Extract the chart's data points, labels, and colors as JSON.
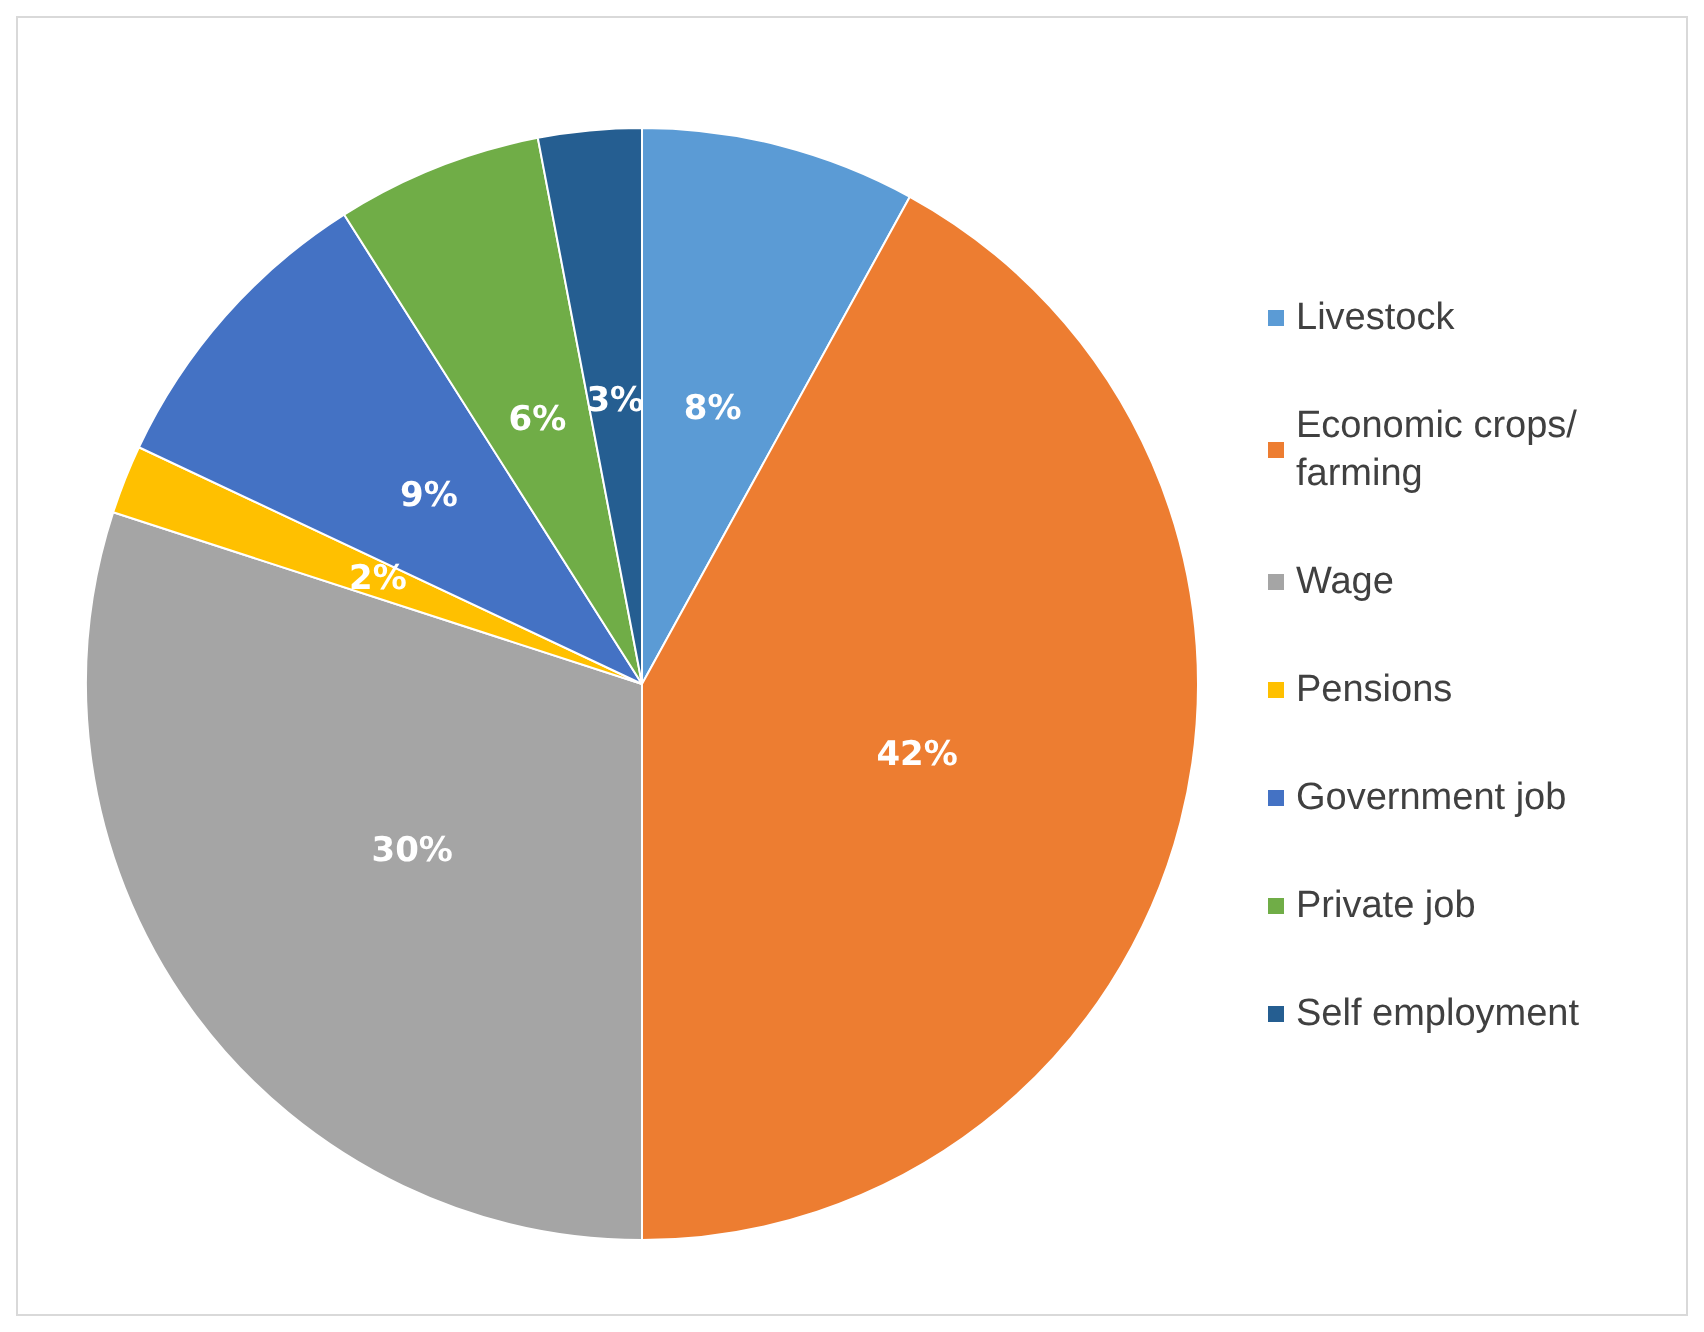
{
  "chart_data": {
    "type": "pie",
    "categories": [
      "Livestock",
      "Economic crops/ farming",
      "Wage",
      "Pensions",
      "Government job",
      "Private job",
      "Self employment"
    ],
    "values": [
      8,
      42,
      30,
      2,
      9,
      6,
      3
    ],
    "colors": [
      "#5b9bd5",
      "#ed7d31",
      "#a5a5a5",
      "#ffc000",
      "#4472c4",
      "#70ad47",
      "#255e91"
    ],
    "value_labels": [
      "8%",
      "42%",
      "30%",
      "2%",
      "9%",
      "6%",
      "3%"
    ],
    "legend": "right"
  }
}
